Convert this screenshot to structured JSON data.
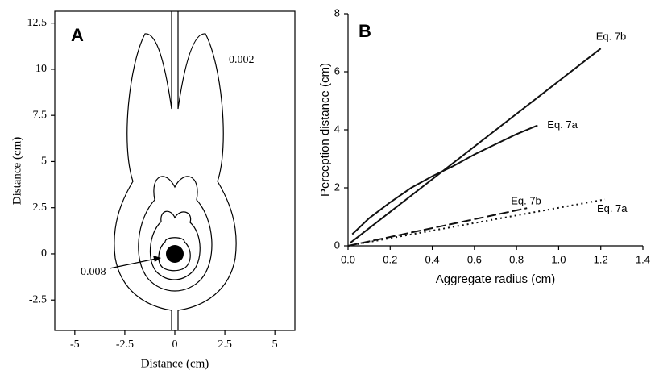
{
  "chart_data": [
    {
      "type": "contour",
      "panel": "A",
      "xlabel": "Distance (cm)",
      "ylabel": "Distance (cm)",
      "xlim": [
        -6,
        6
      ],
      "ylim": [
        -4.15,
        13.14
      ],
      "xticks": [
        -5,
        -2.5,
        0,
        2.5,
        5
      ],
      "yticks": [
        -2.5,
        0,
        2.5,
        5,
        7.5,
        10,
        12.5
      ],
      "annotations": [
        "0.002",
        "0.008"
      ]
    },
    {
      "type": "line",
      "panel": "B",
      "xlabel": "Aggregate radius (cm)",
      "ylabel": "Perception distance (cm)",
      "xlim": [
        0,
        1.4
      ],
      "ylim": [
        0,
        8
      ],
      "xticks": [
        {
          "value": 0,
          "label": "0.0"
        },
        0.2,
        0.4,
        0.6,
        0.8,
        {
          "value": 1,
          "label": "1.0"
        },
        1.2,
        1.4
      ],
      "yticks": [
        0,
        2,
        4,
        6,
        8
      ],
      "series": [
        {
          "name": "Eq. 7b",
          "color": "#111",
          "style": "solid",
          "x": [
            0.01,
            1.2
          ],
          "values": [
            0.1,
            6.8
          ]
        },
        {
          "name": "Eq. 7a",
          "color": "#111",
          "style": "solid",
          "x": [
            0.02,
            0.1,
            0.2,
            0.3,
            0.4,
            0.5,
            0.6,
            0.7,
            0.8,
            0.9
          ],
          "values": [
            0.4,
            0.95,
            1.5,
            2.0,
            2.4,
            2.75,
            3.15,
            3.5,
            3.85,
            4.15
          ]
        },
        {
          "name": "Eq. 7b",
          "color": "#111",
          "style": "dashed",
          "x": [
            0,
            0.85
          ],
          "values": [
            0,
            1.3
          ]
        },
        {
          "name": "Eq. 7a",
          "color": "#111",
          "style": "dotted",
          "x": [
            0,
            1.22
          ],
          "values": [
            0,
            1.6
          ]
        }
      ]
    }
  ]
}
